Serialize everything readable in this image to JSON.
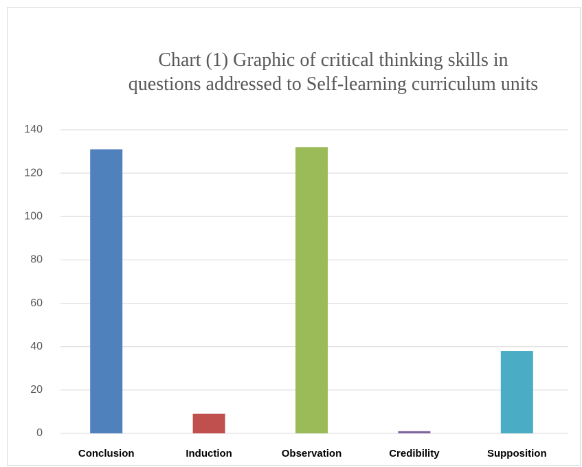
{
  "chart_data": {
    "type": "bar",
    "title": "Chart (1) Graphic of critical thinking skills in questions addressed to Self-learning curriculum units",
    "categories": [
      "Conclusion",
      "Induction",
      "Observation",
      "Credibility",
      "Supposition"
    ],
    "values": [
      131,
      9,
      132,
      1,
      38
    ],
    "colors": [
      "#4f81bd",
      "#c0504d",
      "#9bbb59",
      "#8064a2",
      "#4bacc6"
    ],
    "ylim": [
      0,
      140
    ],
    "yticks": [
      0,
      20,
      40,
      60,
      80,
      100,
      120,
      140
    ],
    "grid": true
  }
}
